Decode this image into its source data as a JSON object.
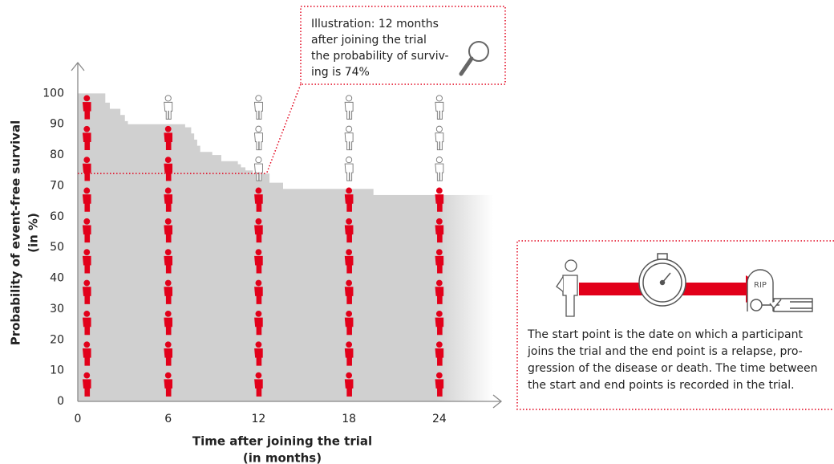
{
  "chart_data": {
    "type": "step-area",
    "color": "#d0d0d0",
    "x": [
      0,
      1.8,
      2.1,
      2.8,
      3.1,
      3.3,
      7.1,
      7.5,
      7.7,
      7.9,
      8.1,
      8.9,
      9.5,
      10.6,
      10.8,
      11.1,
      11.6,
      12.7,
      13.6,
      19.6
    ],
    "y": [
      100,
      97,
      95,
      93,
      91,
      90,
      89,
      87,
      85,
      83,
      81,
      80,
      78,
      77,
      76,
      75,
      74,
      71,
      69,
      67
    ],
    "xlim": [
      0,
      28
    ],
    "ylim": [
      0,
      110
    ],
    "xticks": [
      0,
      6,
      12,
      18,
      24
    ],
    "yticks": [
      0,
      10,
      20,
      30,
      40,
      50,
      60,
      70,
      80,
      90,
      100
    ],
    "grid": false,
    "xlabel": [
      "Time after joining the trial",
      "(in months)"
    ],
    "ylabel": [
      "Probability of event-free survival",
      "(in %)"
    ],
    "highlight": {
      "x": 12,
      "y": 74,
      "color": "#e2001a"
    },
    "annotation": [
      "Illustration: 12 months",
      "after joining the trial",
      "the probability of surviv-",
      "ing is 74%"
    ],
    "icon_columns": {
      "x": [
        0.6,
        6,
        12,
        18,
        24
      ],
      "filled": [
        10,
        9,
        7,
        7,
        7
      ],
      "per_icon": 10,
      "color": "#e2001a"
    }
  },
  "side_note": {
    "lines": [
      "The start point is the date on which a participant",
      "joins the trial and the end point is a relapse, pro-",
      "gression of the disease or death. The time between",
      "the start and end points is recorded in the trial."
    ],
    "tombstone_text": "RIP"
  }
}
